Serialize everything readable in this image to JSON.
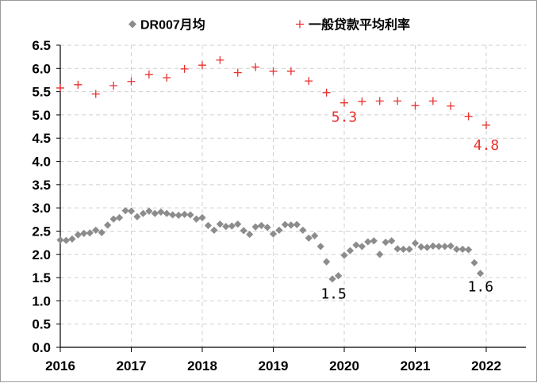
{
  "chart_data": {
    "type": "scatter",
    "xlabel": "",
    "ylabel": "",
    "xlim": [
      2016,
      2022.55
    ],
    "ylim": [
      0,
      6.5
    ],
    "x_ticks": [
      "2016",
      "2017",
      "2018",
      "2019",
      "2020",
      "2021",
      "2022"
    ],
    "y_ticks": [
      "0.0",
      "0.5",
      "1.0",
      "1.5",
      "2.0",
      "2.5",
      "3.0",
      "3.5",
      "4.0",
      "4.5",
      "5.0",
      "5.5",
      "6.0",
      "6.5"
    ],
    "grid": true,
    "legend_position": "top",
    "series": [
      {
        "name": "DR007月均",
        "marker": "diamond",
        "color": "#8c8c8c",
        "x": [
          2016.0,
          2016.083,
          2016.167,
          2016.25,
          2016.333,
          2016.417,
          2016.5,
          2016.583,
          2016.667,
          2016.75,
          2016.833,
          2016.917,
          2017.0,
          2017.083,
          2017.167,
          2017.25,
          2017.333,
          2017.417,
          2017.5,
          2017.583,
          2017.667,
          2017.75,
          2017.833,
          2017.917,
          2018.0,
          2018.083,
          2018.167,
          2018.25,
          2018.333,
          2018.417,
          2018.5,
          2018.583,
          2018.667,
          2018.75,
          2018.833,
          2018.917,
          2019.0,
          2019.083,
          2019.167,
          2019.25,
          2019.333,
          2019.417,
          2019.5,
          2019.583,
          2019.667,
          2019.75,
          2019.833,
          2019.917,
          2020.0,
          2020.083,
          2020.167,
          2020.25,
          2020.333,
          2020.417,
          2020.5,
          2020.583,
          2020.667,
          2020.75,
          2020.833,
          2020.917,
          2021.0,
          2021.083,
          2021.167,
          2021.25,
          2021.333,
          2021.417,
          2021.5,
          2021.583,
          2021.667,
          2021.75,
          2021.833,
          2021.917
        ],
        "values": [
          2.31,
          2.3,
          2.33,
          2.42,
          2.45,
          2.46,
          2.52,
          2.47,
          2.63,
          2.76,
          2.79,
          2.94,
          2.93,
          2.81,
          2.88,
          2.93,
          2.88,
          2.91,
          2.88,
          2.85,
          2.84,
          2.86,
          2.85,
          2.76,
          2.79,
          2.62,
          2.52,
          2.65,
          2.6,
          2.61,
          2.65,
          2.51,
          2.43,
          2.59,
          2.62,
          2.58,
          2.44,
          2.52,
          2.64,
          2.63,
          2.64,
          2.52,
          2.35,
          2.4,
          2.17,
          1.84,
          1.47,
          1.54,
          1.98,
          2.08,
          2.2,
          2.17,
          2.27,
          2.29,
          2.0,
          2.26,
          2.29,
          2.12,
          2.11,
          2.11,
          2.24,
          2.16,
          2.15,
          2.18,
          2.17,
          2.17,
          2.18,
          2.11,
          2.11,
          2.1,
          1.82,
          1.59
        ]
      },
      {
        "name": "一般贷款平均利率",
        "marker": "plus",
        "color": "#e8322e",
        "x": [
          2016.0,
          2016.25,
          2016.5,
          2016.75,
          2017.0,
          2017.25,
          2017.5,
          2017.75,
          2018.0,
          2018.25,
          2018.5,
          2018.75,
          2019.0,
          2019.25,
          2019.5,
          2019.75,
          2020.0,
          2020.25,
          2020.5,
          2020.75,
          2021.0,
          2021.25,
          2021.5,
          2021.75,
          2022.0
        ],
        "values": [
          5.58,
          5.65,
          5.45,
          5.63,
          5.72,
          5.87,
          5.8,
          5.99,
          6.07,
          6.18,
          5.91,
          6.03,
          5.94,
          5.94,
          5.73,
          5.48,
          5.26,
          5.29,
          5.3,
          5.3,
          5.2,
          5.3,
          5.19,
          4.97,
          4.78
        ]
      }
    ],
    "annotations": [
      {
        "text": "5.3",
        "x": 2020.0,
        "y": 4.85,
        "color": "#e8322e"
      },
      {
        "text": "4.8",
        "x": 2022.0,
        "y": 4.25,
        "color": "#e8322e"
      },
      {
        "text": "1.5",
        "x": 2019.85,
        "y": 1.05,
        "color": "#000000"
      },
      {
        "text": "1.6",
        "x": 2021.92,
        "y": 1.2,
        "color": "#000000"
      }
    ]
  }
}
